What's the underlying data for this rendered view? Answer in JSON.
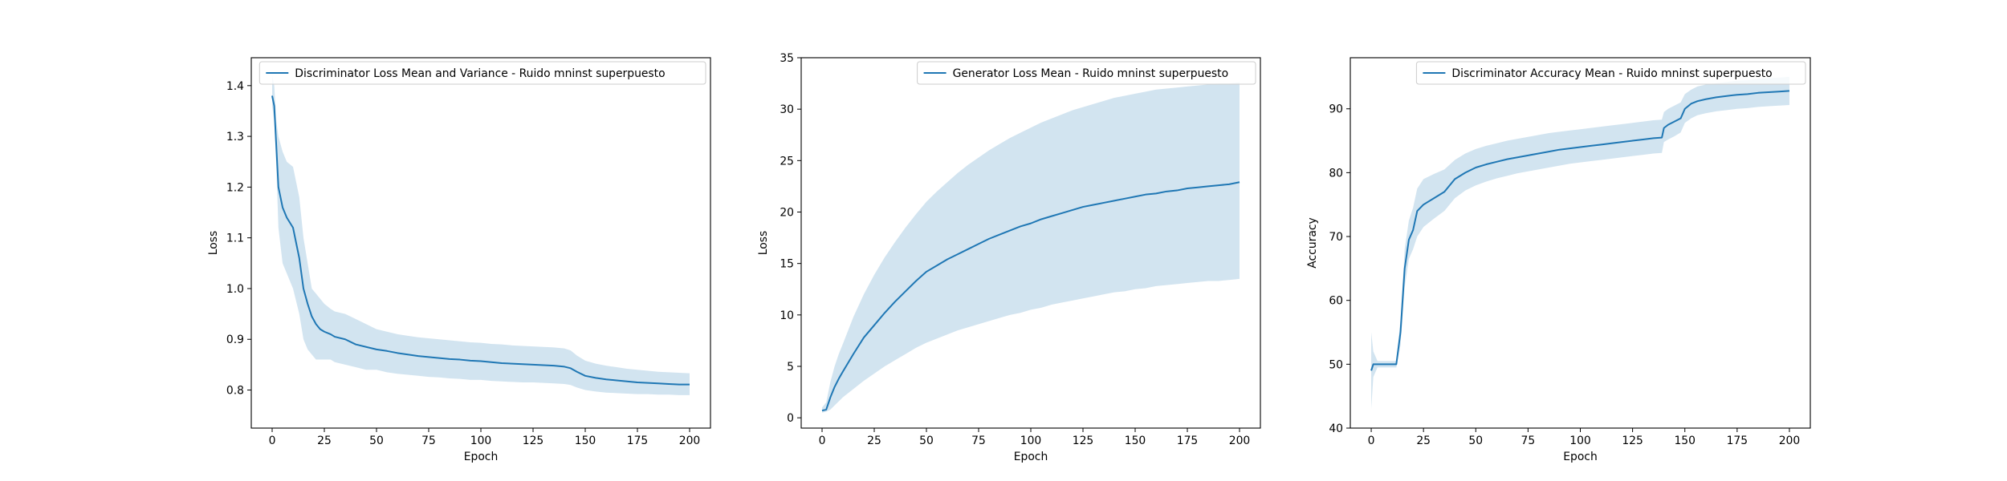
{
  "figure": {
    "background": "#ffffff",
    "line_color": "#1f77b4",
    "band_color": "#1f77b4",
    "band_opacity": 0.2
  },
  "chart_data": [
    {
      "type": "line",
      "title": "",
      "xlabel": "Epoch",
      "ylabel": "Loss",
      "xlim": [
        -10,
        210
      ],
      "ylim": [
        0.725,
        1.455
      ],
      "xticks": [
        0,
        25,
        50,
        75,
        100,
        125,
        150,
        175,
        200
      ],
      "yticks": [
        0.8,
        0.9,
        1.0,
        1.1,
        1.2,
        1.3,
        1.4
      ],
      "ytick_labels": [
        "0.8",
        "0.9",
        "1.0",
        "1.1",
        "1.2",
        "1.3",
        "1.4"
      ],
      "legend_position": "upper right",
      "series": [
        {
          "name": "Discriminator Loss Mean and Variance - Ruido mninst superpuesto",
          "x": [
            0,
            1,
            2,
            3,
            5,
            7,
            10,
            13,
            15,
            17,
            19,
            21,
            23,
            25,
            28,
            30,
            35,
            40,
            45,
            50,
            55,
            60,
            65,
            70,
            75,
            80,
            85,
            90,
            95,
            100,
            105,
            110,
            115,
            120,
            125,
            130,
            135,
            140,
            143,
            146,
            150,
            155,
            160,
            165,
            170,
            175,
            180,
            185,
            190,
            195,
            200
          ],
          "mean": [
            1.38,
            1.36,
            1.28,
            1.2,
            1.16,
            1.14,
            1.12,
            1.06,
            1.0,
            0.97,
            0.945,
            0.93,
            0.92,
            0.915,
            0.91,
            0.905,
            0.9,
            0.89,
            0.885,
            0.88,
            0.877,
            0.873,
            0.87,
            0.867,
            0.865,
            0.863,
            0.861,
            0.86,
            0.858,
            0.857,
            0.855,
            0.853,
            0.852,
            0.851,
            0.85,
            0.849,
            0.848,
            0.846,
            0.843,
            0.836,
            0.828,
            0.824,
            0.821,
            0.819,
            0.817,
            0.815,
            0.814,
            0.813,
            0.812,
            0.811,
            0.811
          ],
          "lower": [
            1.36,
            1.33,
            1.24,
            1.12,
            1.05,
            1.03,
            1.0,
            0.95,
            0.9,
            0.88,
            0.87,
            0.86,
            0.86,
            0.86,
            0.86,
            0.855,
            0.85,
            0.845,
            0.84,
            0.84,
            0.835,
            0.832,
            0.83,
            0.828,
            0.826,
            0.825,
            0.823,
            0.822,
            0.82,
            0.82,
            0.818,
            0.817,
            0.816,
            0.815,
            0.815,
            0.814,
            0.813,
            0.812,
            0.81,
            0.805,
            0.8,
            0.797,
            0.795,
            0.794,
            0.793,
            0.792,
            0.792,
            0.791,
            0.791,
            0.79,
            0.79
          ],
          "upper": [
            1.42,
            1.4,
            1.33,
            1.3,
            1.27,
            1.25,
            1.24,
            1.18,
            1.1,
            1.05,
            1.0,
            0.99,
            0.98,
            0.97,
            0.96,
            0.955,
            0.95,
            0.94,
            0.93,
            0.92,
            0.915,
            0.91,
            0.907,
            0.904,
            0.902,
            0.9,
            0.898,
            0.896,
            0.894,
            0.893,
            0.891,
            0.89,
            0.888,
            0.887,
            0.886,
            0.885,
            0.884,
            0.882,
            0.878,
            0.868,
            0.858,
            0.852,
            0.848,
            0.845,
            0.842,
            0.84,
            0.838,
            0.836,
            0.835,
            0.834,
            0.833
          ]
        }
      ]
    },
    {
      "type": "line",
      "title": "",
      "xlabel": "Epoch",
      "ylabel": "Loss",
      "xlim": [
        -10,
        210
      ],
      "ylim": [
        -1,
        35
      ],
      "xticks": [
        0,
        25,
        50,
        75,
        100,
        125,
        150,
        175,
        200
      ],
      "yticks": [
        0,
        5,
        10,
        15,
        20,
        25,
        30,
        35
      ],
      "ytick_labels": [
        "0",
        "5",
        "10",
        "15",
        "20",
        "25",
        "30",
        "35"
      ],
      "legend_position": "upper right",
      "series": [
        {
          "name": "Generator Loss Mean - Ruido mninst superpuesto",
          "x": [
            0,
            2,
            4,
            6,
            8,
            10,
            15,
            20,
            25,
            30,
            35,
            40,
            45,
            50,
            55,
            60,
            65,
            70,
            75,
            80,
            85,
            90,
            95,
            100,
            105,
            110,
            115,
            120,
            125,
            130,
            135,
            140,
            145,
            150,
            155,
            160,
            165,
            170,
            175,
            180,
            185,
            190,
            195,
            200
          ],
          "mean": [
            0.7,
            0.8,
            2.0,
            3.0,
            3.8,
            4.5,
            6.2,
            7.8,
            9.0,
            10.2,
            11.3,
            12.3,
            13.3,
            14.2,
            14.8,
            15.4,
            15.9,
            16.4,
            16.9,
            17.4,
            17.8,
            18.2,
            18.6,
            18.9,
            19.3,
            19.6,
            19.9,
            20.2,
            20.5,
            20.7,
            20.9,
            21.1,
            21.3,
            21.5,
            21.7,
            21.8,
            22.0,
            22.1,
            22.3,
            22.4,
            22.5,
            22.6,
            22.7,
            22.9
          ],
          "lower": [
            0.5,
            0.6,
            0.8,
            1.2,
            1.6,
            2.0,
            2.8,
            3.6,
            4.3,
            5.0,
            5.6,
            6.2,
            6.8,
            7.3,
            7.7,
            8.1,
            8.5,
            8.8,
            9.1,
            9.4,
            9.7,
            10.0,
            10.2,
            10.5,
            10.7,
            11.0,
            11.2,
            11.4,
            11.6,
            11.8,
            12.0,
            12.2,
            12.3,
            12.5,
            12.6,
            12.8,
            12.9,
            13.0,
            13.1,
            13.2,
            13.3,
            13.3,
            13.4,
            13.5
          ],
          "upper": [
            1.0,
            1.5,
            3.5,
            5.0,
            6.2,
            7.2,
            9.8,
            12.0,
            13.9,
            15.6,
            17.1,
            18.5,
            19.8,
            21.0,
            22.0,
            22.9,
            23.8,
            24.6,
            25.3,
            26.0,
            26.6,
            27.2,
            27.7,
            28.2,
            28.7,
            29.1,
            29.5,
            29.9,
            30.2,
            30.5,
            30.8,
            31.1,
            31.3,
            31.5,
            31.7,
            31.9,
            32.0,
            32.1,
            32.2,
            32.3,
            32.4,
            32.5,
            32.5,
            32.6
          ]
        }
      ]
    },
    {
      "type": "line",
      "title": "",
      "xlabel": "Epoch",
      "ylabel": "Accuracy",
      "xlim": [
        -10,
        210
      ],
      "ylim": [
        40,
        98
      ],
      "xticks": [
        0,
        25,
        50,
        75,
        100,
        125,
        150,
        175,
        200
      ],
      "yticks": [
        40,
        50,
        60,
        70,
        80,
        90
      ],
      "ytick_labels": [
        "40",
        "50",
        "60",
        "70",
        "80",
        "90"
      ],
      "legend_position": "upper right",
      "series": [
        {
          "name": "Discriminator Accuracy Mean - Ruido mninst superpuesto",
          "x": [
            0,
            1,
            3,
            6,
            9,
            12,
            14,
            16,
            18,
            20,
            22,
            25,
            30,
            35,
            40,
            45,
            50,
            55,
            60,
            65,
            70,
            75,
            80,
            85,
            90,
            95,
            100,
            105,
            110,
            115,
            120,
            125,
            130,
            135,
            139,
            140,
            142,
            145,
            148,
            150,
            153,
            156,
            160,
            165,
            170,
            175,
            180,
            185,
            190,
            195,
            200
          ],
          "mean": [
            49.0,
            50.0,
            50.0,
            50.0,
            50.0,
            50.0,
            55.0,
            65.0,
            69.5,
            71.0,
            74.0,
            75.0,
            76.0,
            77.0,
            79.0,
            80.0,
            80.8,
            81.3,
            81.7,
            82.1,
            82.4,
            82.7,
            83.0,
            83.3,
            83.6,
            83.8,
            84.0,
            84.2,
            84.4,
            84.6,
            84.8,
            85.0,
            85.2,
            85.4,
            85.5,
            87.0,
            87.5,
            88.0,
            88.5,
            90.0,
            90.8,
            91.2,
            91.5,
            91.8,
            92.0,
            92.2,
            92.3,
            92.5,
            92.6,
            92.7,
            92.8
          ],
          "lower": [
            43.0,
            48.0,
            49.5,
            49.5,
            49.5,
            49.5,
            53.0,
            62.0,
            66.5,
            68.0,
            70.0,
            71.5,
            72.8,
            74.0,
            76.0,
            77.2,
            78.0,
            78.6,
            79.1,
            79.5,
            79.9,
            80.2,
            80.5,
            80.8,
            81.1,
            81.4,
            81.6,
            81.8,
            82.0,
            82.2,
            82.4,
            82.6,
            82.8,
            83.0,
            83.1,
            84.8,
            85.2,
            85.7,
            86.3,
            87.8,
            88.5,
            89.0,
            89.3,
            89.6,
            89.8,
            90.0,
            90.1,
            90.3,
            90.4,
            90.5,
            90.6
          ],
          "upper": [
            55.0,
            52.0,
            50.5,
            50.5,
            50.5,
            50.5,
            57.0,
            68.0,
            72.5,
            74.5,
            77.5,
            79.0,
            79.8,
            80.5,
            82.0,
            83.0,
            83.7,
            84.2,
            84.6,
            85.0,
            85.3,
            85.6,
            85.9,
            86.2,
            86.4,
            86.6,
            86.8,
            87.0,
            87.2,
            87.4,
            87.6,
            87.8,
            88.0,
            88.2,
            88.3,
            89.5,
            90.0,
            90.5,
            91.0,
            92.3,
            93.0,
            93.5,
            93.8,
            94.0,
            94.2,
            94.4,
            94.5,
            94.7,
            94.8,
            94.9,
            95.0
          ]
        }
      ]
    }
  ]
}
